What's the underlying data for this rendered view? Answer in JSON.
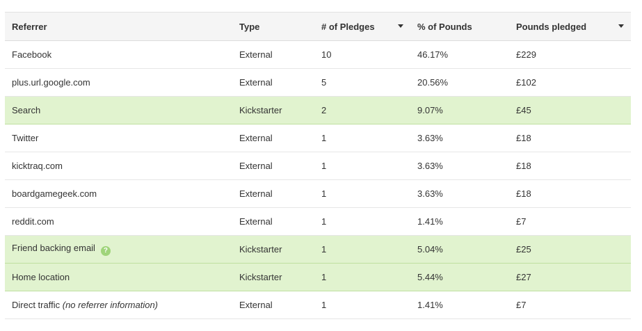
{
  "columns": [
    {
      "label": "Referrer"
    },
    {
      "label": "Type"
    },
    {
      "label": "# of Pledges",
      "sort_icon": "sort-desc-icon"
    },
    {
      "label": "% of Pounds"
    },
    {
      "label": "Pounds pledged",
      "sort_icon": "sort-desc-icon"
    }
  ],
  "rows": [
    {
      "referrer": "Facebook",
      "note": "",
      "type": "External",
      "pledges": "10",
      "pct": "46.17%",
      "pounds": "£229",
      "highlight": false
    },
    {
      "referrer": "plus.url.google.com",
      "note": "",
      "type": "External",
      "pledges": "5",
      "pct": "20.56%",
      "pounds": "£102",
      "highlight": false
    },
    {
      "referrer": "Search",
      "note": "",
      "type": "Kickstarter",
      "pledges": "2",
      "pct": "9.07%",
      "pounds": "£45",
      "highlight": true
    },
    {
      "referrer": "Twitter",
      "note": "",
      "type": "External",
      "pledges": "1",
      "pct": "3.63%",
      "pounds": "£18",
      "highlight": false
    },
    {
      "referrer": "kicktraq.com",
      "note": "",
      "type": "External",
      "pledges": "1",
      "pct": "3.63%",
      "pounds": "£18",
      "highlight": false
    },
    {
      "referrer": "boardgamegeek.com",
      "note": "",
      "type": "External",
      "pledges": "1",
      "pct": "3.63%",
      "pounds": "£18",
      "highlight": false
    },
    {
      "referrer": "reddit.com",
      "note": "",
      "type": "External",
      "pledges": "1",
      "pct": "1.41%",
      "pounds": "£7",
      "highlight": false
    },
    {
      "referrer": "Friend backing email",
      "note": "",
      "type": "Kickstarter",
      "pledges": "1",
      "pct": "5.04%",
      "pounds": "£25",
      "highlight": true,
      "help_icon": "?"
    },
    {
      "referrer": "Home location",
      "note": "",
      "type": "Kickstarter",
      "pledges": "1",
      "pct": "5.44%",
      "pounds": "£27",
      "highlight": true
    },
    {
      "referrer": "Direct traffic",
      "note": "(no referrer information)",
      "type": "External",
      "pledges": "1",
      "pct": "1.41%",
      "pounds": "£7",
      "highlight": false
    }
  ],
  "colors": {
    "highlight_row": "#e1f3cf",
    "help_icon": "#9fd47a"
  }
}
